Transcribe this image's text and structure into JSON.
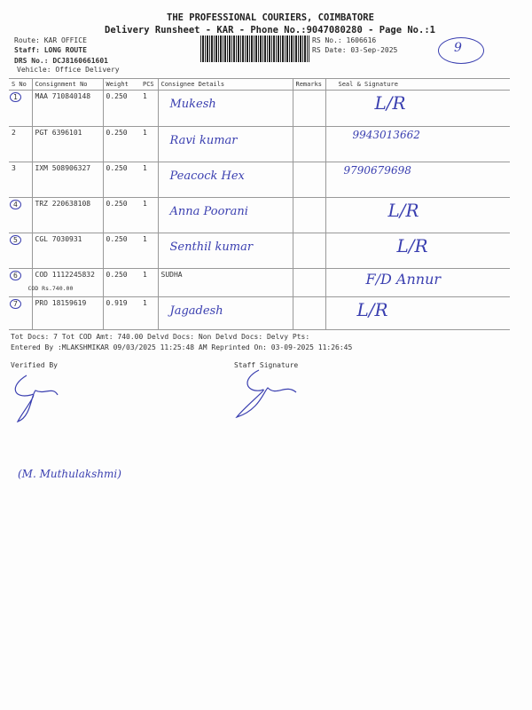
{
  "header": {
    "company": "THE PROFESSIONAL COURIERS, COIMBATORE",
    "subtitle": "Delivery Runsheet - KAR - Phone No.:9047080280 - Page No.:1",
    "route": "Route: KAR OFFICE",
    "staff": "Staff: LONG ROUTE",
    "drs": "DRS No.: DCJ8160661601",
    "vehicle": "Vehicle: Office Delivery",
    "rs_no": "RS No.: 1606616",
    "rs_date": "RS Date: 03-Sep-2025",
    "handwritten_page_count": "9"
  },
  "table": {
    "columns": [
      "S No",
      "Consignment No",
      "Weight",
      "PCS",
      "Consignee Details",
      "Remarks",
      "Seal & Signature"
    ],
    "rows": [
      {
        "sno": "1",
        "consignment": "MAA 710840148",
        "weight": "0.250",
        "pcs": "1",
        "consignee": "",
        "consignee_hw": "Mukesh",
        "cod": "",
        "seal_hw": "L/R"
      },
      {
        "sno": "2",
        "consignment": "PGT 6396101",
        "weight": "0.250",
        "pcs": "1",
        "consignee": "",
        "consignee_hw": "Ravi kumar",
        "cod": "",
        "seal_hw": "9943013662"
      },
      {
        "sno": "3",
        "consignment": "IXM 508906327",
        "weight": "0.250",
        "pcs": "1",
        "consignee": "",
        "consignee_hw": "Peacock Hex",
        "cod": "",
        "seal_hw": "9790679698"
      },
      {
        "sno": "4",
        "consignment": "TRZ 220638108",
        "weight": "0.250",
        "pcs": "1",
        "consignee": "",
        "consignee_hw": "Anna Poorani",
        "cod": "",
        "seal_hw": "L/R"
      },
      {
        "sno": "5",
        "consignment": "CGL 7030931",
        "weight": "0.250",
        "pcs": "1",
        "consignee": "",
        "consignee_hw": "Senthil kumar",
        "cod": "",
        "seal_hw": "L/R"
      },
      {
        "sno": "6",
        "consignment": "COD 1112245832",
        "weight": "0.250",
        "pcs": "1",
        "consignee": "SUDHA",
        "consignee_hw": "",
        "cod": "COD Rs.740.00",
        "seal_hw": "F/D    Annur"
      },
      {
        "sno": "7",
        "consignment": "PRO 18159619",
        "weight": "0.919",
        "pcs": "1",
        "consignee": "",
        "consignee_hw": "Jagadesh",
        "cod": "",
        "seal_hw": "L/R"
      }
    ]
  },
  "footer": {
    "totals": "Tot Docs:   7    Tot COD Amt:  740.00     Delvd Docs:      Non Delvd Docs:     Delvy Pts:",
    "entered": "Entered By :MLAKSHMIKAR 09/03/2025 11:25:48 AM     Reprinted On: 03-09-2025 11:26:45",
    "verified_by": "Verified By",
    "staff_signature": "Staff Signature",
    "handwritten_name": "(M. Muthulakshmi)"
  }
}
